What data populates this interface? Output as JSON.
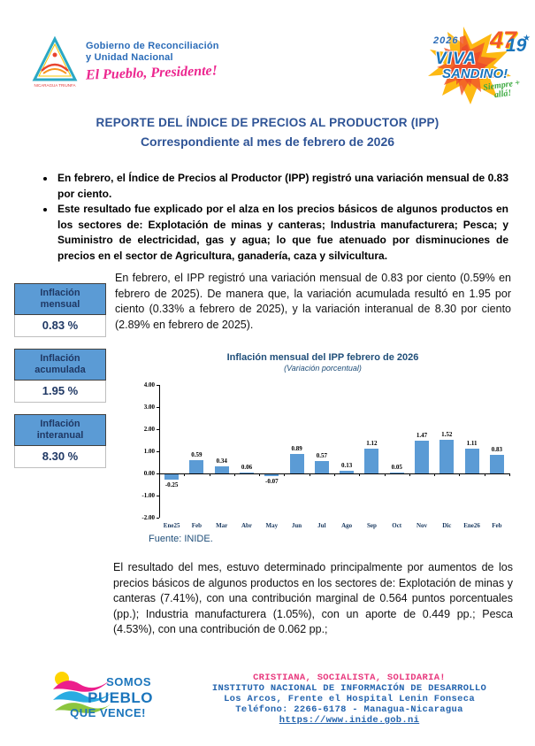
{
  "header": {
    "government": {
      "line1": "Gobierno de Reconciliación",
      "line2": "y Unidad Nacional",
      "script": "El Pueblo, Presidente!",
      "emblem_caption": "NICARAGUA TRIUNFA"
    },
    "campaign_logo": {
      "year": "2026",
      "num_47": "47",
      "num_19": "19",
      "star": "★",
      "viva": "VIVA",
      "sandino": "SANDINO!",
      "script": "Siempre + allá!"
    }
  },
  "title": {
    "line1": "REPORTE DEL ÍNDICE DE PRECIOS AL PRODUCTOR (IPP)",
    "line2": "Correspondiente al mes de febrero de 2026"
  },
  "bullets": [
    "En febrero, el Índice de Precios al Productor (IPP) registró una variación mensual de 0.83 por ciento.",
    "Este resultado fue explicado por el alza en los precios básicos de algunos productos en los sectores de: Explotación de minas y canteras; Industria manufacturera; Pesca; y Suministro de electricidad, gas y agua; lo que fue atenuado por disminuciones de precios en el sector de Agricultura, ganadería, caza y silvicultura."
  ],
  "kpi_boxes": [
    {
      "label": "Inflación mensual",
      "value": "0.83 %"
    },
    {
      "label": "Inflación acumulada",
      "value": "1.95 %"
    },
    {
      "label": "Inflación interanual",
      "value": "8.30 %"
    }
  ],
  "paragraph1": "En febrero, el IPP registró una variación mensual de 0.83 por ciento (0.59% en febrero de 2025). De manera que, la variación acumulada resultó en 1.95 por ciento (0.33% a febrero de 2025), y la variación interanual de 8.30 por ciento (2.89% en febrero de 2025).",
  "chart_data": {
    "type": "bar",
    "title": "Inflación mensual del IPP febrero de 2026",
    "subtitle": "(Variación porcentual)",
    "categories": [
      "Ene25",
      "Feb",
      "Mar",
      "Abr",
      "May",
      "Jun",
      "Jul",
      "Ago",
      "Sep",
      "Oct",
      "Nov",
      "Dic",
      "Ene26",
      "Feb"
    ],
    "values": [
      -0.25,
      0.59,
      0.34,
      0.06,
      -0.07,
      0.89,
      0.57,
      0.13,
      1.12,
      0.05,
      1.47,
      1.52,
      1.11,
      0.83
    ],
    "value_labels": [
      "-0.25",
      "0.59",
      "0.34",
      "0.06",
      "-0.07",
      "0.89",
      "0.57",
      "0.13",
      "1.12",
      "0.05",
      "1.47",
      "1.52",
      "1.11",
      "0.83"
    ],
    "yticks": [
      "4.00",
      "3.00",
      "2.00",
      "1.00",
      "0.00",
      "-1.00",
      "-2.00"
    ],
    "ylim": [
      -2.0,
      4.0
    ],
    "xlabel": "",
    "ylabel": "",
    "grid": false,
    "legend": false,
    "bar_color": "#5b9bd5"
  },
  "source": "Fuente: INIDE.",
  "paragraph2": "El resultado del mes, estuvo determinado principalmente por aumentos de los precios básicos de algunos productos en los sectores de: Explotación de minas y canteras (7.41%), con una contribución marginal de 0.564 puntos porcentuales (pp.); Industria manufacturera (1.05%), con un aporte de 0.449 pp.; Pesca (4.53%), con una contribución de 0.062 pp.;",
  "footer": {
    "logo": {
      "line1": "SOMOS",
      "line2": "PUEBLO",
      "line3": "QUE VENCE!"
    },
    "slogan": "CRISTIANA, SOCIALISTA, SOLIDARIA!",
    "institute": "INSTITUTO NACIONAL DE INFORMACIÓN DE DESARROLLO",
    "address": "Los Arcos, Frente el Hospital Lenin Fonseca",
    "phone": "Teléfono: 2266-6178 - Managua-Nicaragua",
    "website": "https://www.inide.gob.ni"
  }
}
